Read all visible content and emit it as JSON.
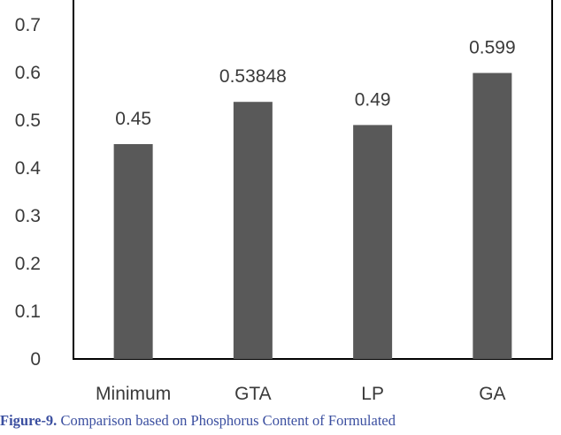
{
  "chart_data": {
    "type": "bar",
    "categories": [
      "Minimum",
      "GTA",
      "LP",
      "GA"
    ],
    "values": [
      0.45,
      0.53848,
      0.49,
      0.599
    ],
    "data_labels": [
      "0.45",
      "0.53848",
      "0.49",
      "0.599"
    ],
    "ylim": [
      0,
      0.7
    ],
    "yticks": [
      "0",
      "0.1",
      "0.2",
      "0.3",
      "0.4",
      "0.5",
      "0.6",
      "0.7"
    ],
    "title": "",
    "xlabel": "",
    "ylabel": "",
    "grid": false,
    "legend": "none",
    "bar_color": "#595959",
    "axis_color": "#000000"
  },
  "caption": {
    "label": "Figure-9.",
    "text": " Comparison based on Phosphorus Content of Formulated"
  }
}
